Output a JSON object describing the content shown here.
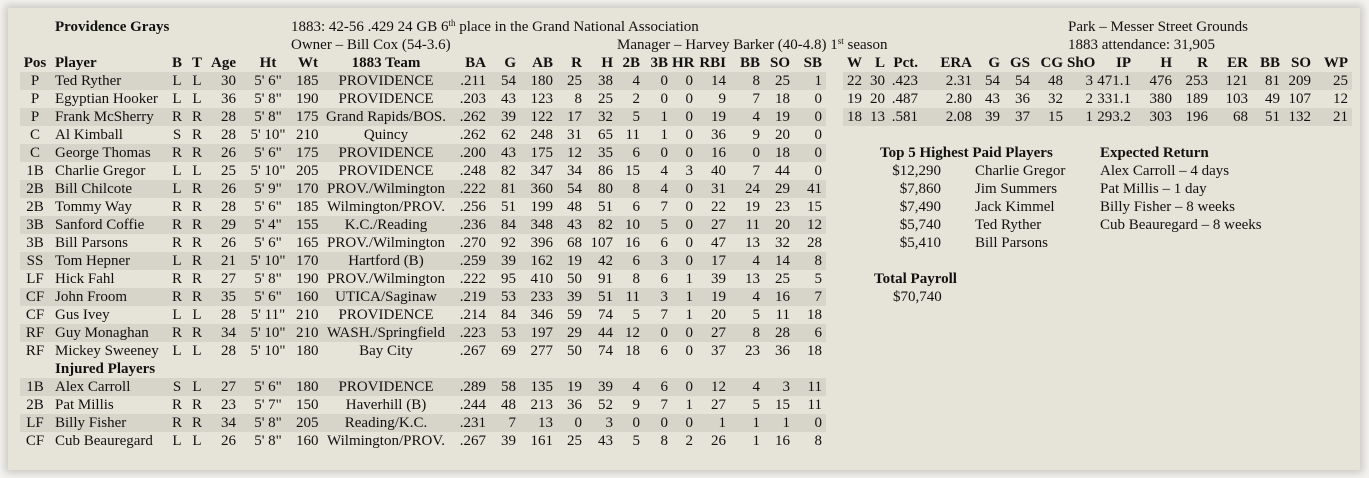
{
  "header": {
    "team": "Providence Grays",
    "record": "1883:  42-56  .429  24 GB  6",
    "place_sup": "th",
    "place_rest": " place in the Grand National Association",
    "owner": "Owner – Bill Cox (54-3.6)",
    "manager": "Manager – Harvey Barker (40-4.8)  1",
    "manager_sup": "st",
    "manager_rest": " season",
    "park": "Park – Messer Street Grounds",
    "attendance": "1883 attendance:  31,905"
  },
  "batting": {
    "columns": [
      "Pos",
      "Player",
      "B",
      "T",
      "Age",
      "Ht",
      "Wt",
      "1883 Team",
      "BA",
      "G",
      "AB",
      "R",
      "H",
      "2B",
      "3B",
      "HR",
      "RBI",
      "BB",
      "SO",
      "SB"
    ],
    "rows": [
      [
        "P",
        "Ted Ryther",
        "L",
        "L",
        "30",
        "5' 6\"",
        "185",
        "PROVIDENCE",
        ".211",
        "54",
        "180",
        "25",
        "38",
        "4",
        "0",
        "0",
        "14",
        "8",
        "25",
        "1"
      ],
      [
        "P",
        "Egyptian Hooker",
        "L",
        "L",
        "36",
        "5' 8\"",
        "190",
        "PROVIDENCE",
        ".203",
        "43",
        "123",
        "8",
        "25",
        "2",
        "0",
        "0",
        "9",
        "7",
        "18",
        "0"
      ],
      [
        "P",
        "Frank McSherry",
        "R",
        "R",
        "28",
        "5' 8\"",
        "175",
        "Grand Rapids/BOS.",
        ".262",
        "39",
        "122",
        "17",
        "32",
        "5",
        "1",
        "0",
        "19",
        "4",
        "19",
        "0"
      ],
      [
        "C",
        "Al Kimball",
        "S",
        "R",
        "28",
        "5' 10\"",
        "210",
        "Quincy",
        ".262",
        "62",
        "248",
        "31",
        "65",
        "11",
        "1",
        "0",
        "36",
        "9",
        "20",
        "0"
      ],
      [
        "C",
        "George Thomas",
        "R",
        "R",
        "26",
        "5' 6\"",
        "175",
        "PROVIDENCE",
        ".200",
        "43",
        "175",
        "12",
        "35",
        "6",
        "0",
        "0",
        "16",
        "0",
        "18",
        "0"
      ],
      [
        "1B",
        "Charlie Gregor",
        "L",
        "L",
        "25",
        "5' 10\"",
        "205",
        "PROVIDENCE",
        ".248",
        "82",
        "347",
        "34",
        "86",
        "15",
        "4",
        "3",
        "40",
        "7",
        "44",
        "0"
      ],
      [
        "2B",
        "Bill Chilcote",
        "L",
        "R",
        "26",
        "5' 9\"",
        "170",
        "PROV./Wilmington",
        ".222",
        "81",
        "360",
        "54",
        "80",
        "8",
        "4",
        "0",
        "31",
        "24",
        "29",
        "41"
      ],
      [
        "2B",
        "Tommy Way",
        "R",
        "R",
        "28",
        "5' 6\"",
        "185",
        "Wilmington/PROV.",
        ".256",
        "51",
        "199",
        "48",
        "51",
        "6",
        "7",
        "0",
        "22",
        "19",
        "23",
        "15"
      ],
      [
        "3B",
        "Sanford Coffie",
        "R",
        "R",
        "29",
        "5' 4\"",
        "155",
        "K.C./Reading",
        ".236",
        "84",
        "348",
        "43",
        "82",
        "10",
        "5",
        "0",
        "27",
        "11",
        "20",
        "12"
      ],
      [
        "3B",
        "Bill Parsons",
        "R",
        "R",
        "26",
        "5' 6\"",
        "165",
        "PROV./Wilmington",
        ".270",
        "92",
        "396",
        "68",
        "107",
        "16",
        "6",
        "0",
        "47",
        "13",
        "32",
        "28"
      ],
      [
        "SS",
        "Tom Hepner",
        "L",
        "R",
        "21",
        "5' 10\"",
        "170",
        "Hartford (B)",
        ".259",
        "39",
        "162",
        "19",
        "42",
        "6",
        "3",
        "0",
        "17",
        "4",
        "14",
        "8"
      ],
      [
        "LF",
        "Hick Fahl",
        "R",
        "R",
        "27",
        "5' 8\"",
        "190",
        "PROV./Wilmington",
        ".222",
        "95",
        "410",
        "50",
        "91",
        "8",
        "6",
        "1",
        "39",
        "13",
        "25",
        "5"
      ],
      [
        "CF",
        "John Froom",
        "R",
        "R",
        "35",
        "5' 6\"",
        "160",
        "UTICA/Saginaw",
        ".219",
        "53",
        "233",
        "39",
        "51",
        "11",
        "3",
        "1",
        "19",
        "4",
        "16",
        "7"
      ],
      [
        "CF",
        "Gus Ivey",
        "L",
        "L",
        "28",
        "5' 11\"",
        "210",
        "PROVIDENCE",
        ".214",
        "84",
        "346",
        "59",
        "74",
        "5",
        "7",
        "1",
        "20",
        "5",
        "11",
        "18"
      ],
      [
        "RF",
        "Guy Monaghan",
        "R",
        "R",
        "34",
        "5' 10\"",
        "210",
        "WASH./Springfield",
        ".223",
        "53",
        "197",
        "29",
        "44",
        "12",
        "0",
        "0",
        "27",
        "8",
        "28",
        "6"
      ],
      [
        "RF",
        "Mickey Sweeney",
        "L",
        "L",
        "28",
        "5' 10\"",
        "180",
        "Bay City",
        ".267",
        "69",
        "277",
        "50",
        "74",
        "18",
        "6",
        "0",
        "37",
        "23",
        "36",
        "18"
      ]
    ]
  },
  "injured": {
    "title": "Injured Players",
    "rows": [
      [
        "1B",
        "Alex Carroll",
        "S",
        "L",
        "27",
        "5' 6\"",
        "180",
        "PROVIDENCE",
        ".289",
        "58",
        "135",
        "19",
        "39",
        "4",
        "6",
        "0",
        "12",
        "4",
        "3",
        "11"
      ],
      [
        "2B",
        "Pat Millis",
        "R",
        "R",
        "23",
        "5' 7\"",
        "150",
        "Haverhill (B)",
        ".244",
        "48",
        "213",
        "36",
        "52",
        "9",
        "7",
        "1",
        "27",
        "5",
        "15",
        "11"
      ],
      [
        "LF",
        "Billy Fisher",
        "R",
        "R",
        "34",
        "5' 8\"",
        "205",
        "Reading/K.C.",
        ".231",
        "7",
        "13",
        "0",
        "3",
        "0",
        "0",
        "0",
        "1",
        "1",
        "1",
        "0"
      ],
      [
        "CF",
        "Cub Beauregard",
        "L",
        "L",
        "26",
        "5' 8\"",
        "160",
        "Wilmington/PROV.",
        ".267",
        "39",
        "161",
        "25",
        "43",
        "5",
        "8",
        "2",
        "26",
        "1",
        "16",
        "8"
      ]
    ]
  },
  "pitching": {
    "columns": [
      "W",
      "L",
      "Pct.",
      "ERA",
      "G",
      "GS",
      "CG",
      "ShO",
      "IP",
      "H",
      "R",
      "ER",
      "BB",
      "SO",
      "WP"
    ],
    "rows": [
      [
        "22",
        "30",
        ".423",
        "2.31",
        "54",
        "54",
        "48",
        "3",
        "471.1",
        "476",
        "253",
        "121",
        "81",
        "209",
        "25"
      ],
      [
        "19",
        "20",
        ".487",
        "2.80",
        "43",
        "36",
        "32",
        "2",
        "331.1",
        "380",
        "189",
        "103",
        "49",
        "107",
        "12"
      ],
      [
        "18",
        "13",
        ".581",
        "2.08",
        "39",
        "37",
        "15",
        "1",
        "293.2",
        "303",
        "196",
        "68",
        "51",
        "132",
        "21"
      ]
    ]
  },
  "top_paid": {
    "title": "Top 5 Highest Paid Players",
    "rows": [
      [
        "$12,290",
        "Charlie Gregor"
      ],
      [
        "$7,860",
        "Jim Summers"
      ],
      [
        "$7,490",
        "Jack Kimmel"
      ],
      [
        "$5,740",
        "Ted Ryther"
      ],
      [
        "$5,410",
        "Bill Parsons"
      ]
    ]
  },
  "expected_return": {
    "title": "Expected Return",
    "rows": [
      "Alex Carroll – 4 days",
      "Pat Millis – 1 day",
      "Billy Fisher – 8 weeks",
      "Cub Beauregard – 8 weeks"
    ]
  },
  "payroll": {
    "title": "Total Payroll",
    "value": "$70,740"
  },
  "colors": {
    "background": "#e6e3d8",
    "band": "#d7d4c9"
  }
}
